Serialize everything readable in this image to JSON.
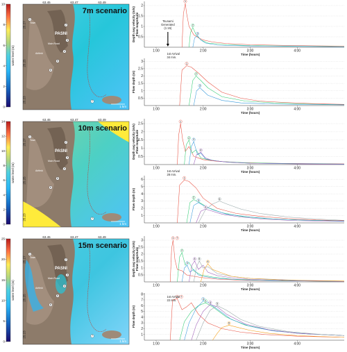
{
  "panels": [
    {
      "scenario_title": "7m scenario",
      "colorbar": {
        "label": "water level (m)",
        "ticks": [
          "0",
          "2",
          "4",
          "6",
          "8",
          "10"
        ],
        "max": 10
      },
      "map": {
        "lon_ticks": [
          "63.45",
          "63.47",
          "63.49"
        ],
        "lat_ticks": [
          "25.27",
          "25.25",
          "25.23"
        ],
        "town_label": "PASNI",
        "scale_label": "1 km",
        "gauge_numbers": [
          "1",
          "2",
          "3",
          "4",
          "5",
          "6",
          "7"
        ],
        "place_labels": [
          "Main Road",
          "Airfield",
          "Town"
        ]
      },
      "velocity_chart": {
        "ylabel": "Depth avg velocity (m/s)",
        "ylabel2": "Flow magnitude",
        "xlabel": "Time (hours)",
        "yticks": [
          "0.5",
          "1",
          "1.5",
          "2"
        ],
        "xticks": [
          "1:00",
          "2:00",
          "3:00",
          "4:00"
        ],
        "annotation_generated": "Tsunami Generated (1:15)",
        "annotation_arrival": "1st Arrival 34 min.",
        "peak_labels": [
          "1",
          "2",
          "3"
        ]
      },
      "depth_chart": {
        "ylabel": "Flow depth (m)",
        "xlabel": "Time (hours)",
        "yticks": [
          "0.5",
          "1",
          "1.5",
          "2",
          "2.5",
          "3"
        ],
        "xticks": [
          "1:00",
          "2:00",
          "3:00",
          "4:00"
        ],
        "peak_labels": [
          "1",
          "2",
          "3"
        ]
      }
    },
    {
      "scenario_title": "10m scenario",
      "colorbar": {
        "label": "water level (m)",
        "ticks": [
          "0",
          "2",
          "4",
          "6",
          "8",
          "10",
          "12",
          "14"
        ],
        "max": 14
      },
      "map": {
        "lon_ticks": [
          "63.45",
          "63.47",
          "63.49"
        ],
        "lat_ticks": [
          "25.27",
          "25.25",
          "25.23"
        ],
        "town_label": "PASNI",
        "scale_label": "1 km",
        "gauge_numbers": [
          "1",
          "2",
          "3",
          "4",
          "5",
          "6",
          "7"
        ],
        "place_labels": [
          "Main Road",
          "Airfield",
          "Town"
        ]
      },
      "velocity_chart": {
        "ylabel": "Depth avg velocity (m/s)",
        "ylabel2": "Flow magnitude",
        "xlabel": "Time (hours)",
        "yticks": [
          "0.5",
          "1",
          "1.5",
          "2",
          "2.5"
        ],
        "xticks": [
          "1:00",
          "2:00",
          "3:00",
          "4:00"
        ],
        "annotation_arrival": "1st Arrival 28 min.",
        "peak_labels": [
          "1",
          "2",
          "3",
          "4"
        ]
      },
      "depth_chart": {
        "ylabel": "Flow depth (m)",
        "xlabel": "Time (hours)",
        "yticks": [
          "1",
          "2",
          "3",
          "4",
          "5",
          "6"
        ],
        "xticks": [
          "1:00",
          "2:00",
          "3:00",
          "4:00"
        ],
        "peak_labels": [
          "1",
          "2",
          "3",
          "4",
          "5"
        ]
      }
    },
    {
      "scenario_title": "15m scenario",
      "colorbar": {
        "label": "water level (m)",
        "ticks": [
          "0",
          "5",
          "10",
          "15",
          "20",
          "25"
        ],
        "max": 25
      },
      "map": {
        "lon_ticks": [
          "63.45",
          "63.47",
          "63.49"
        ],
        "lat_ticks": [
          "25.27",
          "25.25",
          "25.23"
        ],
        "town_label": "PASNI",
        "scale_label": "1 km",
        "gauge_numbers": [
          "1",
          "2",
          "3",
          "4",
          "5",
          "6",
          "7"
        ],
        "place_labels": [
          "Main Road",
          "Airfield",
          "Town"
        ]
      },
      "velocity_chart": {
        "ylabel": "Depth avg velocity (m/s)",
        "ylabel2": "Flow magnitude",
        "xlabel": "Time (hours)",
        "yticks": [
          "0.5",
          "1",
          "1.5",
          "2",
          "2.5",
          "3"
        ],
        "xticks": [
          "1:00",
          "2:00",
          "3:00",
          "4:00"
        ],
        "peak_labels": [
          "1",
          "2",
          "3",
          "4",
          "5",
          "6",
          "7"
        ]
      },
      "depth_chart": {
        "ylabel": "Flow depth (m)",
        "xlabel": "Time (hours)",
        "yticks": [
          "1",
          "2",
          "3",
          "4",
          "5",
          "6",
          "7",
          "8"
        ],
        "xticks": [
          "1:00",
          "2:00",
          "3:00",
          "4:00"
        ],
        "annotation_arrival": "1st Arrival 22 min.",
        "peak_labels": [
          "1",
          "2",
          "3",
          "4",
          "5",
          "6",
          "7"
        ]
      }
    }
  ],
  "chart_data": [
    {
      "type": "line",
      "panel": 0,
      "chart": "velocity",
      "xlim": [
        0.75,
        5.0
      ],
      "ylim": [
        0,
        2.2
      ],
      "series": [
        {
          "color": "#e74c3c",
          "x": [
            1.55,
            1.58,
            1.62,
            1.65,
            1.7,
            1.8,
            1.9,
            2.0,
            2.2,
            2.5,
            3.0,
            4.0,
            5.0
          ],
          "y": [
            0,
            1.6,
            2.1,
            1.6,
            1.0,
            0.6,
            0.45,
            0.35,
            0.25,
            0.18,
            0.12,
            0.08,
            0.05
          ]
        },
        {
          "color": "#2ecc71",
          "x": [
            1.7,
            1.73,
            1.78,
            1.85,
            1.95,
            2.1,
            2.5,
            3.0,
            4.0,
            5.0
          ],
          "y": [
            0,
            0.7,
            0.95,
            0.6,
            0.35,
            0.2,
            0.12,
            0.08,
            0.05,
            0.03
          ]
        },
        {
          "color": "#3498db",
          "x": [
            1.78,
            1.82,
            1.88,
            1.95,
            2.05,
            2.3,
            3.0,
            4.0,
            5.0
          ],
          "y": [
            0,
            0.45,
            0.55,
            0.35,
            0.2,
            0.1,
            0.06,
            0.04,
            0.02
          ]
        }
      ]
    },
    {
      "type": "line",
      "panel": 0,
      "chart": "depth",
      "xlim": [
        0.75,
        5.0
      ],
      "ylim": [
        0,
        3.2
      ],
      "series": [
        {
          "color": "#e74c3c",
          "x": [
            1.5,
            1.55,
            1.65,
            1.75,
            1.9,
            2.1,
            2.4,
            2.8,
            3.2,
            3.8,
            4.4,
            5.0
          ],
          "y": [
            0,
            2.4,
            2.7,
            2.6,
            2.2,
            1.6,
            0.9,
            0.5,
            0.3,
            0.2,
            0.12,
            0.08
          ]
        },
        {
          "color": "#2ecc71",
          "x": [
            1.7,
            1.78,
            1.85,
            1.95,
            2.1,
            2.4,
            2.9,
            3.5,
            4.2,
            5.0
          ],
          "y": [
            0,
            1.7,
            2.0,
            1.7,
            1.2,
            0.6,
            0.3,
            0.18,
            0.1,
            0.06
          ]
        },
        {
          "color": "#3498db",
          "x": [
            1.8,
            1.86,
            1.93,
            2.0,
            2.1,
            2.4,
            2.8,
            3.5,
            5.0
          ],
          "y": [
            0,
            1.0,
            1.2,
            1.0,
            0.7,
            0.35,
            0.18,
            0.1,
            0.05
          ]
        }
      ]
    },
    {
      "type": "line",
      "panel": 1,
      "chart": "velocity",
      "xlim": [
        0.75,
        5.0
      ],
      "ylim": [
        0,
        2.8
      ],
      "series": [
        {
          "color": "#e74c3c",
          "x": [
            1.45,
            1.48,
            1.52,
            1.56,
            1.62,
            1.7,
            1.8,
            1.9,
            2.0,
            2.3,
            2.8,
            3.5,
            5.0
          ],
          "y": [
            0,
            1.8,
            2.5,
            1.6,
            0.8,
            1.1,
            0.5,
            0.4,
            0.3,
            0.2,
            0.12,
            0.08,
            0.04
          ]
        },
        {
          "color": "#2ecc71",
          "x": [
            1.6,
            1.64,
            1.7,
            1.76,
            1.85,
            1.95,
            2.1,
            2.4,
            3.0,
            4.0,
            5.0
          ],
          "y": [
            0,
            1.2,
            1.5,
            0.7,
            0.9,
            0.4,
            0.3,
            0.18,
            0.1,
            0.06,
            0.03
          ]
        },
        {
          "color": "#3498db",
          "x": [
            1.7,
            1.75,
            1.8,
            1.88,
            1.95,
            2.05,
            2.2,
            2.5,
            3.0,
            4.0,
            5.0
          ],
          "y": [
            0,
            1.1,
            1.4,
            0.6,
            0.7,
            0.35,
            0.25,
            0.15,
            0.08,
            0.05,
            0.03
          ]
        },
        {
          "color": "#9b59b6",
          "x": [
            1.8,
            1.86,
            1.95,
            2.05,
            2.2,
            2.5,
            3.0,
            4.0,
            5.0
          ],
          "y": [
            0,
            0.6,
            0.75,
            0.4,
            0.25,
            0.15,
            0.08,
            0.04,
            0.02
          ]
        }
      ]
    },
    {
      "type": "line",
      "panel": 1,
      "chart": "depth",
      "xlim": [
        0.75,
        5.0
      ],
      "ylim": [
        0,
        6.5
      ],
      "series": [
        {
          "color": "#e74c3c",
          "x": [
            1.45,
            1.5,
            1.6,
            1.7,
            1.85,
            2.0,
            2.3,
            2.7,
            3.2,
            3.8,
            4.4,
            5.0
          ],
          "y": [
            0,
            5.2,
            5.9,
            5.7,
            4.8,
            3.4,
            2.0,
            1.3,
            0.9,
            0.6,
            0.4,
            0.3
          ]
        },
        {
          "color": "#2ecc71",
          "x": [
            1.65,
            1.72,
            1.8,
            1.95,
            2.1,
            2.4,
            2.8,
            3.3,
            4.0,
            5.0
          ],
          "y": [
            0,
            2.8,
            3.2,
            2.7,
            2.1,
            1.4,
            0.9,
            0.6,
            0.4,
            0.25
          ]
        },
        {
          "color": "#3498db",
          "x": [
            1.72,
            1.8,
            1.9,
            2.0,
            2.2,
            2.5,
            3.0,
            3.6,
            4.3,
            5.0
          ],
          "y": [
            0,
            2.4,
            2.8,
            2.4,
            1.8,
            1.2,
            0.8,
            0.5,
            0.35,
            0.25
          ]
        },
        {
          "color": "#9b59b6",
          "x": [
            1.85,
            1.95,
            2.05,
            2.2,
            2.4,
            2.8,
            3.3,
            4.0,
            5.0
          ],
          "y": [
            0,
            1.6,
            1.9,
            1.6,
            1.2,
            0.8,
            0.5,
            0.3,
            0.2
          ]
        },
        {
          "color": "#95a5a6",
          "x": [
            1.9,
            2.05,
            2.2,
            2.35,
            2.5,
            2.8,
            3.2,
            3.8,
            4.5,
            5.0
          ],
          "y": [
            0,
            1.8,
            2.6,
            3.0,
            2.6,
            1.9,
            1.3,
            0.8,
            0.5,
            0.35
          ]
        }
      ]
    },
    {
      "type": "line",
      "panel": 2,
      "chart": "velocity",
      "xlim": [
        0.75,
        5.0
      ],
      "ylim": [
        0,
        3.3
      ],
      "series": [
        {
          "color": "#e74c3c",
          "x": [
            1.3,
            1.33,
            1.36,
            1.4,
            1.45,
            1.55,
            1.65,
            1.8,
            2.0,
            2.3,
            2.8,
            3.5,
            5.0
          ],
          "y": [
            0,
            2.4,
            3.0,
            1.6,
            0.9,
            0.8,
            0.5,
            0.4,
            0.3,
            0.2,
            0.12,
            0.08,
            0.04
          ]
        },
        {
          "color": "#2ecc71",
          "x": [
            1.45,
            1.5,
            1.55,
            1.62,
            1.7,
            1.8,
            1.95,
            2.2,
            2.6,
            3.2,
            4.0,
            5.0
          ],
          "y": [
            0,
            1.8,
            2.1,
            1.2,
            1.4,
            0.8,
            0.5,
            0.35,
            0.2,
            0.12,
            0.07,
            0.04
          ]
        },
        {
          "color": "#3498db",
          "x": [
            1.55,
            1.6,
            1.66,
            1.72,
            1.8,
            1.9,
            2.0,
            2.3,
            2.8,
            3.5,
            5.0
          ],
          "y": [
            0,
            1.0,
            1.2,
            0.7,
            0.9,
            0.5,
            0.4,
            0.25,
            0.15,
            0.08,
            0.04
          ]
        },
        {
          "color": "#9b59b6",
          "x": [
            1.7,
            1.76,
            1.82,
            1.9,
            2.0,
            2.1,
            2.3,
            2.6,
            3.0,
            4.0,
            5.0
          ],
          "y": [
            0,
            1.2,
            1.5,
            0.9,
            1.2,
            0.7,
            0.45,
            0.3,
            0.18,
            0.08,
            0.04
          ]
        },
        {
          "color": "#95a5a6",
          "x": [
            1.8,
            1.86,
            1.92,
            2.0,
            2.1,
            2.3,
            2.6,
            3.0,
            4.0,
            5.0
          ],
          "y": [
            0,
            1.1,
            1.5,
            1.0,
            1.1,
            0.6,
            0.4,
            0.25,
            0.12,
            0.06
          ]
        },
        {
          "color": "#f39c12",
          "x": [
            1.95,
            2.02,
            2.1,
            2.2,
            2.35,
            2.6,
            3.0,
            3.8,
            5.0
          ],
          "y": [
            0,
            0.9,
            1.3,
            0.9,
            0.7,
            0.4,
            0.25,
            0.12,
            0.06
          ]
        }
      ]
    },
    {
      "type": "line",
      "panel": 2,
      "chart": "depth",
      "xlim": [
        0.75,
        5.0
      ],
      "ylim": [
        0,
        8.2
      ],
      "series": [
        {
          "color": "#e74c3c",
          "x": [
            1.3,
            1.35,
            1.45,
            1.55,
            1.65,
            1.75,
            1.9,
            2.1,
            2.4,
            2.8,
            3.3,
            4.0,
            5.0
          ],
          "y": [
            0,
            7.0,
            7.2,
            5.3,
            5.8,
            6.5,
            4.5,
            3.0,
            2.0,
            1.4,
            1.0,
            0.7,
            0.5
          ]
        },
        {
          "color": "#2ecc71",
          "x": [
            1.5,
            1.6,
            1.75,
            1.9,
            2.05,
            2.2,
            2.5,
            2.9,
            3.4,
            4.0,
            5.0
          ],
          "y": [
            0,
            3.2,
            5.0,
            6.0,
            6.5,
            5.8,
            4.0,
            2.6,
            1.8,
            1.2,
            0.8
          ]
        },
        {
          "color": "#3498db",
          "x": [
            1.6,
            1.7,
            1.85,
            2.0,
            2.1,
            2.3,
            2.6,
            3.0,
            3.5,
            4.2,
            5.0
          ],
          "y": [
            0,
            3.0,
            5.5,
            6.8,
            6.6,
            5.4,
            3.6,
            2.4,
            1.6,
            1.1,
            0.8
          ]
        },
        {
          "color": "#9b59b6",
          "x": [
            1.75,
            1.85,
            2.0,
            2.15,
            2.3,
            2.5,
            2.9,
            3.4,
            4.0,
            5.0
          ],
          "y": [
            0,
            2.6,
            5.0,
            6.2,
            5.8,
            4.5,
            2.8,
            1.8,
            1.2,
            0.8
          ]
        },
        {
          "color": "#95a5a6",
          "x": [
            1.85,
            2.0,
            2.15,
            2.3,
            2.5,
            2.8,
            3.2,
            3.8,
            4.5,
            5.0
          ],
          "y": [
            0,
            3.0,
            5.2,
            6.0,
            5.2,
            3.6,
            2.4,
            1.5,
            1.0,
            0.8
          ]
        },
        {
          "color": "#f39c12",
          "x": [
            2.2,
            2.3,
            2.4,
            2.55,
            2.7,
            3.0,
            3.4,
            4.0,
            5.0
          ],
          "y": [
            0,
            1.2,
            2.2,
            2.6,
            2.3,
            1.7,
            1.2,
            0.8,
            0.5
          ]
        }
      ]
    }
  ]
}
